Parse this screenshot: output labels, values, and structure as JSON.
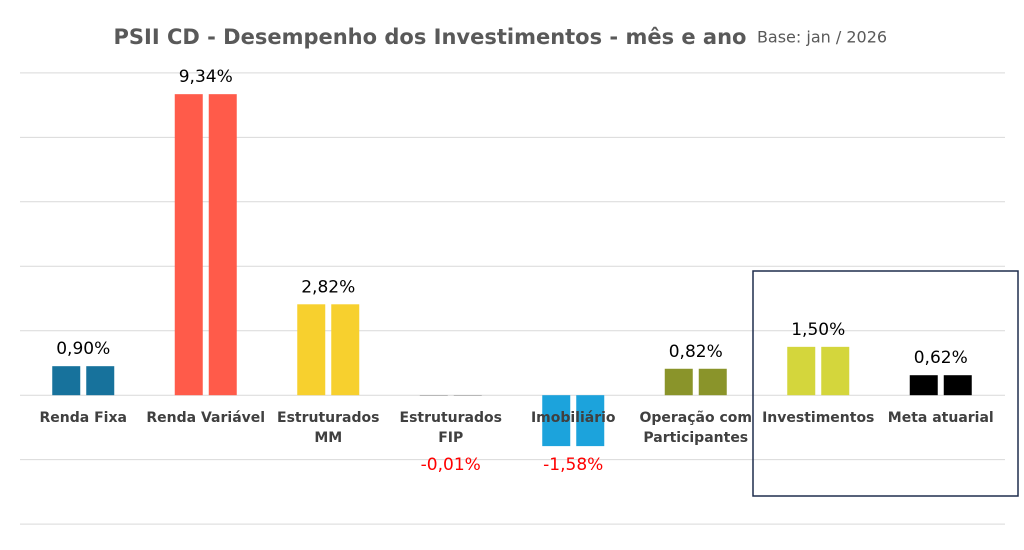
{
  "chart_data": {
    "type": "bar",
    "title": "PSII CD - Desempenho dos Investimentos - mês e ano",
    "subtitle": "Base: jan / 2026",
    "categories": [
      "Renda Fixa",
      "Renda Variável",
      "Estruturados MM",
      "Estruturados FIP",
      "Imobiliário",
      "Operação com Participantes",
      "Investimentos",
      "Meta atuarial"
    ],
    "values": [
      0.9,
      9.34,
      2.82,
      -0.01,
      -1.58,
      0.82,
      1.5,
      0.62
    ],
    "value_labels": [
      "0,90%",
      "9,34%",
      "2,82%",
      "-0,01%",
      "-1,58%",
      "0,82%",
      "1,50%",
      "0,62%"
    ],
    "colors": [
      "#17729c",
      "#ff5b4a",
      "#f7d02e",
      "#8c8c8c",
      "#1ca3dc",
      "#8a942a",
      "#d4d63c",
      "#000000"
    ],
    "ylim": [
      -4.4,
      10.4
    ],
    "yticks": [
      -4,
      -2,
      0,
      2,
      4,
      6,
      8,
      10
    ],
    "grid": true
  }
}
